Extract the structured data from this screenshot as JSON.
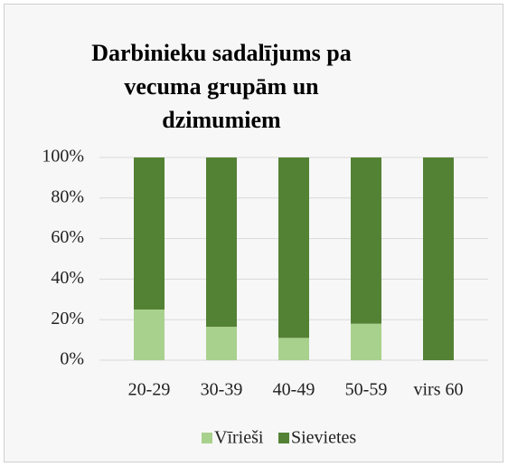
{
  "chart_data": {
    "type": "stacked_bar",
    "title": "Darbinieku sadalījums pa vecuma grupām un dzimumiem",
    "categories": [
      "20-29",
      "30-39",
      "40-49",
      "50-59",
      "virs 60"
    ],
    "series": [
      {
        "name": "Vīrieši",
        "color": "#a9d18e",
        "values": [
          25,
          16.5,
          11,
          18,
          0
        ]
      },
      {
        "name": "Sievietes",
        "color": "#548235",
        "values": [
          75,
          83.5,
          89,
          82,
          100
        ]
      }
    ],
    "ylim": [
      0,
      100
    ],
    "yticks": [
      {
        "value": 0,
        "label": "0%"
      },
      {
        "value": 20,
        "label": "20%"
      },
      {
        "value": 40,
        "label": "40%"
      },
      {
        "value": 60,
        "label": "60%"
      },
      {
        "value": 80,
        "label": "80%"
      },
      {
        "value": 100,
        "label": "100%"
      }
    ],
    "grid": true,
    "legend": "bottom"
  }
}
